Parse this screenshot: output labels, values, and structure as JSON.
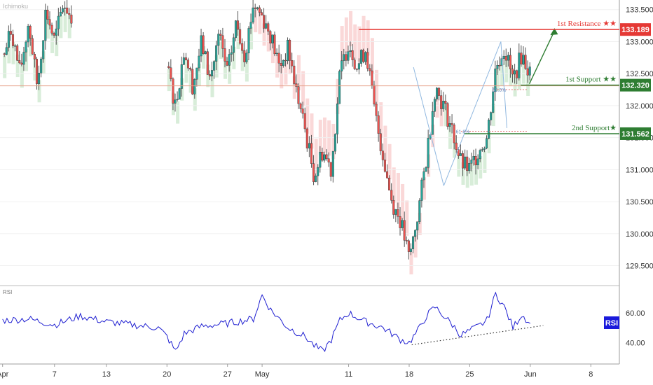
{
  "chart_data": {
    "type": "candlestick",
    "watermark": "Ichimoku",
    "y_axis": {
      "ticks": [
        "133.500",
        "133.000",
        "132.500",
        "132.000",
        "131.500",
        "131.000",
        "130.500",
        "130.000",
        "129.500"
      ],
      "tick_values": [
        133.5,
        133.0,
        132.5,
        132.0,
        131.5,
        131.0,
        130.5,
        130.0,
        129.5
      ],
      "range": [
        129.2,
        133.65
      ]
    },
    "x_axis": {
      "ticks": [
        "Apr",
        "7",
        "13",
        "20",
        "27",
        "May",
        "11",
        "18",
        "25",
        "Jun",
        "8"
      ],
      "tick_days": [
        1,
        7,
        13,
        20,
        27,
        31,
        41,
        48,
        55,
        62,
        69
      ],
      "range_days": [
        0.7,
        72.3
      ]
    },
    "price_series": [
      [
        1,
        132.7
      ],
      [
        2,
        133.2
      ],
      [
        3,
        132.5
      ],
      [
        4,
        133.3
      ],
      [
        5,
        132.3
      ],
      [
        6,
        133.5
      ],
      [
        7,
        133.0
      ],
      [
        8,
        133.6
      ],
      [
        9,
        133.4
      ],
      [
        20,
        132.6
      ],
      [
        21,
        132.0
      ],
      [
        22,
        132.9
      ],
      [
        23,
        132.3
      ],
      [
        24,
        133.0
      ],
      [
        25,
        132.4
      ],
      [
        26,
        133.1
      ],
      [
        27,
        132.5
      ],
      [
        28,
        133.3
      ],
      [
        29,
        132.8
      ],
      [
        30,
        133.6
      ],
      [
        31,
        133.4
      ],
      [
        32,
        133.1
      ],
      [
        33,
        132.6
      ],
      [
        34,
        132.9
      ],
      [
        35,
        132.2
      ],
      [
        36,
        131.6
      ],
      [
        37,
        130.9
      ],
      [
        38,
        131.3
      ],
      [
        39,
        131.0
      ],
      [
        40,
        132.5
      ],
      [
        41,
        133.0
      ],
      [
        42,
        132.6
      ],
      [
        43,
        132.9
      ],
      [
        44,
        131.9
      ],
      [
        45,
        131.2
      ],
      [
        46,
        130.5
      ],
      [
        47,
        130.2
      ],
      [
        48,
        129.6
      ],
      [
        49,
        130.3
      ],
      [
        50,
        131.2
      ],
      [
        51,
        132.3
      ],
      [
        52,
        132.0
      ],
      [
        53,
        131.6
      ],
      [
        54,
        131.1
      ],
      [
        55,
        131.0
      ],
      [
        56,
        131.3
      ],
      [
        57,
        131.5
      ],
      [
        58,
        132.6
      ],
      [
        59,
        132.9
      ],
      [
        60,
        132.4
      ],
      [
        61,
        132.8
      ],
      [
        62,
        132.5
      ]
    ],
    "rsi_series": [
      [
        1,
        55
      ],
      [
        4,
        56
      ],
      [
        7,
        52
      ],
      [
        10,
        58
      ],
      [
        13,
        54
      ],
      [
        16,
        52
      ],
      [
        19,
        50
      ],
      [
        20,
        44
      ],
      [
        21,
        34
      ],
      [
        22,
        46
      ],
      [
        24,
        51
      ],
      [
        27,
        53
      ],
      [
        30,
        56
      ],
      [
        31,
        72
      ],
      [
        32,
        62
      ],
      [
        34,
        50
      ],
      [
        36,
        44
      ],
      [
        37,
        38
      ],
      [
        38,
        34
      ],
      [
        39,
        42
      ],
      [
        40,
        55
      ],
      [
        41,
        60
      ],
      [
        43,
        54
      ],
      [
        45,
        50
      ],
      [
        46,
        46
      ],
      [
        47,
        42
      ],
      [
        48,
        40
      ],
      [
        49,
        48
      ],
      [
        50,
        58
      ],
      [
        51,
        64
      ],
      [
        52,
        58
      ],
      [
        53,
        52
      ],
      [
        54,
        45
      ],
      [
        55,
        48
      ],
      [
        56,
        51
      ],
      [
        57,
        55
      ],
      [
        58,
        73
      ],
      [
        59,
        64
      ],
      [
        60,
        50
      ],
      [
        61,
        59
      ],
      [
        62,
        53
      ]
    ],
    "rsi_axis": {
      "ticks": [
        "60.00",
        "40.00"
      ],
      "tick_values": [
        60,
        40
      ],
      "range": [
        26,
        78
      ]
    },
    "levels": [
      {
        "name": "1st Resistance ★★",
        "price_label": "133.189",
        "value": 133.189,
        "color": "#e53935"
      },
      {
        "name": "1st Support ★★",
        "price_label": "132.320",
        "value": 132.32,
        "color": "#2e7d32"
      },
      {
        "name": "2nd Support★",
        "price_label": "131.562",
        "value": 131.562,
        "color": "#2e7d32"
      }
    ],
    "indicator_label": "RSI",
    "indicator_badge": "RSI",
    "fib_labels": [
      "50.0%",
      "61.8%"
    ],
    "colors": {
      "up": "#26a69a",
      "down": "#ef5350",
      "wick": "#555555",
      "rsi_line": "#1f1fd1",
      "resistance": "#e53935",
      "support": "#2e7d32",
      "cloud_bear": "#f8c7c7",
      "cloud_bull": "#c8e6c9",
      "badge": "#1a1adb"
    }
  }
}
